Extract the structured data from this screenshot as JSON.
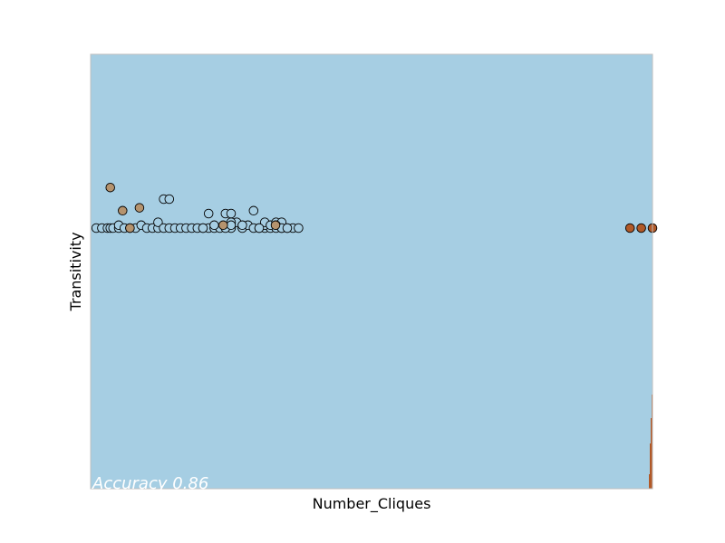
{
  "chart_data": {
    "type": "scatter",
    "xlabel": "Number_Cliques",
    "ylabel": "Transitivity",
    "annotation": "Accuracy 0.86",
    "xlim": [
      0,
      100
    ],
    "ylim": [
      -0.9,
      0.6
    ],
    "grid": false,
    "ticks_shown": false,
    "colors": {
      "background_region": "#a6cee3",
      "edge_region": "#b15928",
      "class_light": "#a6cee3",
      "class_tan": "#b5936e",
      "class_dark": "#b15928",
      "point_edge": "#000000",
      "frame": "#bfbfbf"
    },
    "series": [
      {
        "class": "light",
        "points": [
          [
            1,
            0
          ],
          [
            2,
            0
          ],
          [
            3,
            0
          ],
          [
            3.5,
            0
          ],
          [
            4,
            0
          ],
          [
            5,
            0
          ],
          [
            5,
            0.01
          ],
          [
            6,
            0
          ],
          [
            7,
            0
          ],
          [
            8,
            0
          ],
          [
            9,
            0.01
          ],
          [
            10,
            0
          ],
          [
            11,
            0
          ],
          [
            12,
            0
          ],
          [
            12,
            0.02
          ],
          [
            13,
            0
          ],
          [
            13,
            0.1
          ],
          [
            14,
            0
          ],
          [
            14,
            0.1
          ],
          [
            15,
            0
          ],
          [
            16,
            0
          ],
          [
            17,
            0
          ],
          [
            18,
            0
          ],
          [
            19,
            0
          ],
          [
            20,
            0
          ],
          [
            21,
            0
          ],
          [
            22,
            0
          ],
          [
            23,
            0
          ],
          [
            24,
            0.05
          ],
          [
            25,
            0
          ],
          [
            26,
            0.02
          ],
          [
            27,
            0
          ],
          [
            28,
            0.01
          ],
          [
            29,
            0
          ],
          [
            30,
            0
          ],
          [
            31,
            0
          ],
          [
            32,
            0
          ],
          [
            33,
            0
          ],
          [
            34,
            0
          ],
          [
            35,
            0
          ],
          [
            36,
            0
          ],
          [
            37,
            0
          ],
          [
            25,
            0.02
          ],
          [
            20,
            0
          ],
          [
            22,
            0.01
          ],
          [
            21,
            0.05
          ],
          [
            24,
            0
          ],
          [
            25,
            0.01
          ],
          [
            27,
            0.01
          ],
          [
            31,
            0.01
          ],
          [
            25,
            0.05
          ],
          [
            29,
            0.06
          ],
          [
            31,
            0.02
          ],
          [
            32,
            0.01
          ],
          [
            33,
            0.02
          ],
          [
            34,
            0.02
          ],
          [
            30,
            0
          ],
          [
            33,
            0.01
          ],
          [
            34,
            0
          ],
          [
            35,
            0
          ]
        ]
      },
      {
        "class": "tan",
        "points": [
          [
            3.5,
            0.14
          ],
          [
            5.7,
            0.06
          ],
          [
            8.7,
            0.07
          ],
          [
            7,
            0
          ],
          [
            23.6,
            0.01
          ],
          [
            32.9,
            0.01
          ]
        ]
      },
      {
        "class": "dark",
        "points": [
          [
            96,
            0
          ],
          [
            98,
            0
          ],
          [
            100,
            0
          ]
        ]
      }
    ]
  }
}
